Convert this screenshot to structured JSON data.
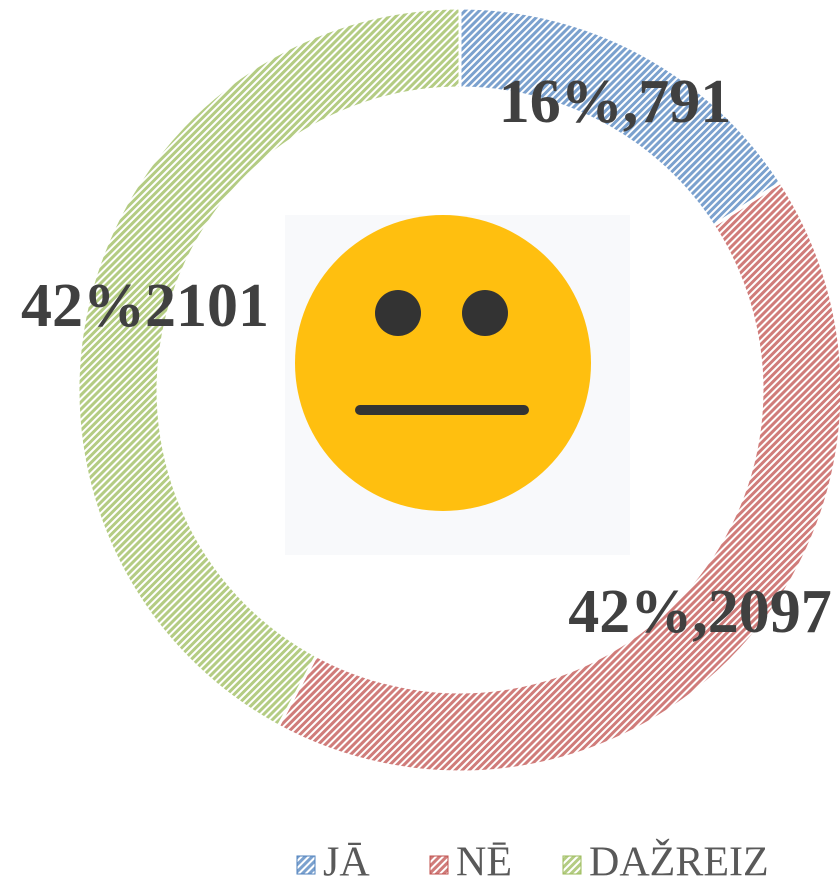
{
  "chart_data": {
    "type": "donut",
    "categories": [
      "JĀ",
      "NĒ",
      "DAŽREIZ"
    ],
    "values": [
      791,
      2097,
      2101
    ],
    "value_labels": [
      "16%,791",
      "42%,2097",
      "42%2101"
    ],
    "colors": [
      "#4f81bd",
      "#c0504d",
      "#9bbb59"
    ]
  }
}
